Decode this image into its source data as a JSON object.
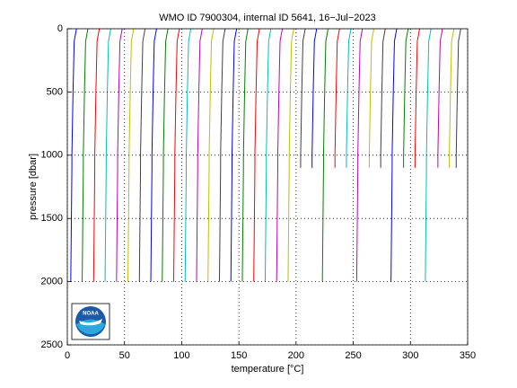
{
  "chart_data": {
    "type": "line",
    "title": "WMO ID 7900304, internal ID 5641, 16−Jul−2023",
    "xlabel": "temperature [°C]",
    "ylabel": "pressure [dbar]",
    "logo": "NOAA",
    "xlim": [
      0,
      350
    ],
    "xticks": [
      0,
      50,
      100,
      150,
      200,
      250,
      300,
      350
    ],
    "ylim": [
      0,
      2500
    ],
    "yticks": [
      0,
      500,
      1000,
      1500,
      2000,
      2500
    ],
    "y_reversed": true,
    "grid": true,
    "y": [
      0,
      100,
      500,
      1000,
      1100,
      2000
    ],
    "series": [
      {
        "color": "#0000ff",
        "x": [
          8,
          6,
          5,
          4,
          4,
          3
        ]
      },
      {
        "color": "#008000",
        "x": [
          18,
          16,
          15,
          14,
          14,
          13
        ]
      },
      {
        "color": "#ff0000",
        "x": [
          28,
          26,
          25,
          24,
          24,
          23
        ]
      },
      {
        "color": "#00bfbf",
        "x": [
          38,
          36,
          35,
          34,
          34,
          33
        ]
      },
      {
        "color": "#bf00bf",
        "x": [
          48,
          46,
          45,
          44,
          44,
          43
        ]
      },
      {
        "color": "#bfbf00",
        "x": [
          58,
          56,
          55,
          54,
          54,
          53
        ]
      },
      {
        "color": "#404040",
        "x": [
          68,
          66,
          65,
          64,
          64,
          63
        ]
      },
      {
        "color": "#0000ff",
        "x": [
          78,
          76,
          75,
          74,
          74,
          73
        ]
      },
      {
        "color": "#008000",
        "x": [
          88,
          86,
          85,
          84,
          84,
          83
        ]
      },
      {
        "color": "#ff0000",
        "x": [
          98,
          96,
          95,
          94,
          94,
          93
        ]
      },
      {
        "color": "#00bfbf",
        "x": [
          108,
          106,
          105,
          104,
          104,
          103
        ]
      },
      {
        "color": "#bf00bf",
        "x": [
          118,
          116,
          115,
          114,
          114,
          113
        ]
      },
      {
        "color": "#bfbf00",
        "x": [
          128,
          126,
          125,
          124,
          124,
          123
        ]
      },
      {
        "color": "#404040",
        "x": [
          138,
          136,
          135,
          134,
          134,
          133
        ]
      },
      {
        "color": "#0000ff",
        "x": [
          148,
          146,
          145,
          144,
          144,
          143
        ]
      },
      {
        "color": "#008000",
        "x": [
          158,
          156,
          155,
          154,
          154,
          153
        ]
      },
      {
        "color": "#ff0000",
        "x": [
          168,
          166,
          165,
          164,
          164,
          163
        ]
      },
      {
        "color": "#00bfbf",
        "x": [
          178,
          176,
          175,
          174,
          174,
          173
        ]
      },
      {
        "color": "#bf00bf",
        "x": [
          188,
          186,
          185,
          184,
          184,
          183
        ]
      },
      {
        "color": "#bfbf00",
        "x": [
          198,
          196,
          195,
          194,
          194,
          193
        ]
      },
      {
        "color": "#404040",
        "x": [
          208,
          206,
          205,
          204,
          204,
          null
        ]
      },
      {
        "color": "#0000ff",
        "x": [
          218,
          216,
          215,
          214,
          214,
          null
        ]
      },
      {
        "color": "#008000",
        "x": [
          228,
          226,
          225,
          224,
          224,
          223
        ]
      },
      {
        "color": "#ff0000",
        "x": [
          238,
          236,
          235,
          234,
          234,
          null
        ]
      },
      {
        "color": "#00bfbf",
        "x": [
          248,
          246,
          245,
          244,
          244,
          null
        ]
      },
      {
        "color": "#bf00bf",
        "x": [
          258,
          256,
          255,
          254,
          254,
          253
        ]
      },
      {
        "color": "#bfbf00",
        "x": [
          268,
          266,
          265,
          264,
          264,
          null
        ]
      },
      {
        "color": "#404040",
        "x": [
          278,
          276,
          275,
          274,
          274,
          null
        ]
      },
      {
        "color": "#0000ff",
        "x": [
          288,
          286,
          285,
          284,
          284,
          283
        ]
      },
      {
        "color": "#008000",
        "x": [
          298,
          296,
          295,
          294,
          294,
          null
        ]
      },
      {
        "color": "#ff0000",
        "x": [
          308,
          306,
          305,
          304,
          304,
          null
        ]
      },
      {
        "color": "#00bfbf",
        "x": [
          318,
          316,
          315,
          314,
          314,
          313
        ]
      },
      {
        "color": "#bf00bf",
        "x": [
          328,
          326,
          325,
          324,
          324,
          null
        ]
      },
      {
        "color": "#bfbf00",
        "x": [
          338,
          336,
          335,
          334,
          334,
          null
        ]
      },
      {
        "color": "#404040",
        "x": [
          344,
          342,
          341,
          340,
          340,
          null
        ]
      }
    ]
  }
}
